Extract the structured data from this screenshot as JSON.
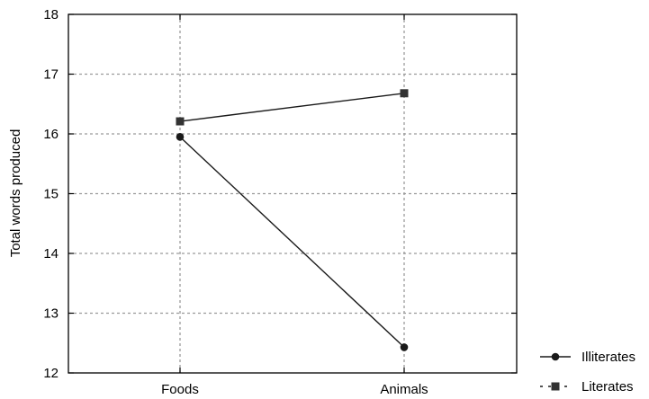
{
  "chart_data": {
    "type": "line",
    "categories": [
      "Foods",
      "Animals"
    ],
    "series": [
      {
        "name": "Illiterates",
        "marker": "circle",
        "values": [
          15.95,
          12.43
        ]
      },
      {
        "name": "Literates",
        "marker": "square",
        "values": [
          16.21,
          16.68
        ]
      }
    ],
    "title": "",
    "xlabel": "",
    "ylabel": "Total words produced",
    "ylim": [
      12,
      18
    ],
    "yticks": [
      12,
      13,
      14,
      15,
      16,
      17,
      18
    ],
    "grid": true,
    "legend_position": "bottom-right",
    "colors": {
      "line": "#1a1a1a",
      "grid": "#9a9a9a",
      "axis": "#000000"
    }
  }
}
